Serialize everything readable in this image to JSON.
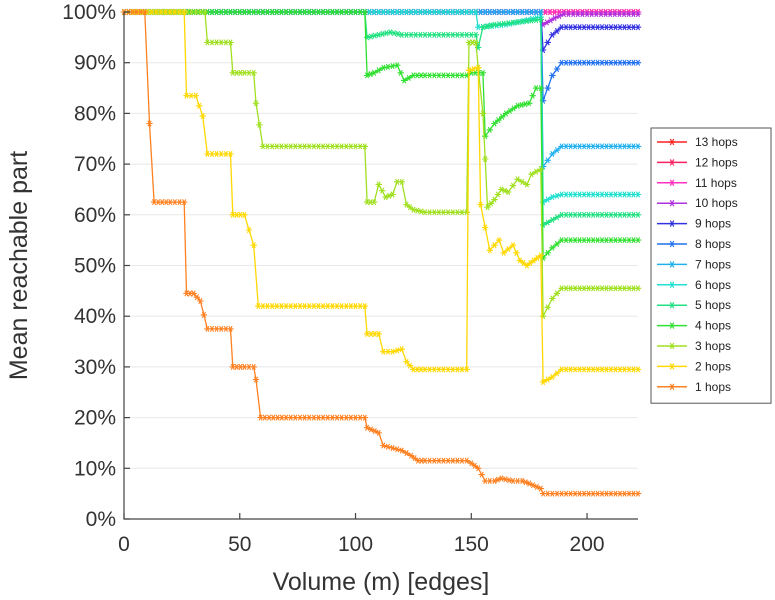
{
  "chart_data": {
    "type": "line",
    "title": "",
    "xlabel": "Volume (m) [edges]",
    "ylabel": "Mean reachable part",
    "xlim": [
      0,
      222
    ],
    "ylim": [
      0,
      100
    ],
    "xticks": [
      0,
      50,
      100,
      150,
      200
    ],
    "yticks": [
      0,
      10,
      20,
      30,
      40,
      50,
      60,
      70,
      80,
      90,
      100
    ],
    "xtick_labels": [
      "0",
      "50",
      "100",
      "150",
      "200"
    ],
    "ytick_labels": [
      "0%",
      "10%",
      "20%",
      "30%",
      "40%",
      "50%",
      "60%",
      "70%",
      "80%",
      "90%",
      "100%"
    ],
    "legend_position": "right",
    "grid": true,
    "marker": "star",
    "series": [
      {
        "name": "13 hops",
        "color": "#ff2020",
        "points": [
          [
            0,
            100
          ],
          [
            222,
            100
          ]
        ]
      },
      {
        "name": "12 hops",
        "color": "#ff2060",
        "points": [
          [
            0,
            100
          ],
          [
            222,
            100
          ]
        ]
      },
      {
        "name": "11 hops",
        "color": "#ff30c0",
        "points": [
          [
            0,
            100
          ],
          [
            222,
            100
          ]
        ]
      },
      {
        "name": "10 hops",
        "color": "#b030e0",
        "points": [
          [
            0,
            100
          ],
          [
            180,
            100
          ],
          [
            181,
            97.5
          ],
          [
            186,
            98.8
          ],
          [
            190,
            99.6
          ],
          [
            222,
            99.6
          ]
        ]
      },
      {
        "name": "9 hops",
        "color": "#3030e0",
        "points": [
          [
            0,
            100
          ],
          [
            180,
            100
          ],
          [
            181,
            92.5
          ],
          [
            185,
            95.5
          ],
          [
            189,
            97
          ],
          [
            222,
            97
          ]
        ]
      },
      {
        "name": "8 hops",
        "color": "#2070f0",
        "points": [
          [
            0,
            100
          ],
          [
            180,
            100
          ],
          [
            181,
            82.5
          ],
          [
            185,
            87.5
          ],
          [
            189,
            90
          ],
          [
            222,
            90
          ]
        ]
      },
      {
        "name": "7 hops",
        "color": "#20b0f0",
        "points": [
          [
            0,
            100
          ],
          [
            180,
            100
          ],
          [
            181,
            69.5
          ],
          [
            185,
            72
          ],
          [
            189,
            73.5
          ],
          [
            222,
            73.5
          ]
        ]
      },
      {
        "name": "6 hops",
        "color": "#20e0d0",
        "points": [
          [
            0,
            100
          ],
          [
            152,
            100
          ],
          [
            153,
            97
          ],
          [
            165,
            97.5
          ],
          [
            180,
            99
          ],
          [
            181,
            62.5
          ],
          [
            185,
            63.5
          ],
          [
            189,
            64
          ],
          [
            222,
            64
          ]
        ]
      },
      {
        "name": "5 hops",
        "color": "#20e080",
        "points": [
          [
            0,
            100
          ],
          [
            104,
            100
          ],
          [
            105,
            95
          ],
          [
            110,
            95.5
          ],
          [
            115,
            96
          ],
          [
            120,
            95.5
          ],
          [
            130,
            95.5
          ],
          [
            150,
            95.5
          ],
          [
            152,
            95.5
          ],
          [
            153,
            93
          ],
          [
            155,
            97
          ],
          [
            160,
            97.5
          ],
          [
            170,
            98
          ],
          [
            180,
            98.5
          ],
          [
            181,
            58
          ],
          [
            185,
            59
          ],
          [
            189,
            60
          ],
          [
            222,
            60
          ]
        ]
      },
      {
        "name": "4 hops",
        "color": "#30e030",
        "points": [
          [
            0,
            100
          ],
          [
            104,
            100
          ],
          [
            105,
            87.5
          ],
          [
            108,
            88
          ],
          [
            112,
            89
          ],
          [
            118,
            89.5
          ],
          [
            121,
            86.5
          ],
          [
            125,
            87.5
          ],
          [
            130,
            87.5
          ],
          [
            140,
            87.5
          ],
          [
            148,
            87.5
          ],
          [
            150,
            88
          ],
          [
            155,
            88
          ],
          [
            156,
            75.5
          ],
          [
            160,
            78
          ],
          [
            165,
            80
          ],
          [
            170,
            81.5
          ],
          [
            175,
            82
          ],
          [
            178,
            85
          ],
          [
            180,
            85
          ],
          [
            181,
            51.5
          ],
          [
            185,
            53.5
          ],
          [
            189,
            55
          ],
          [
            222,
            55
          ]
        ]
      },
      {
        "name": "3 hops",
        "color": "#a0e020",
        "points": [
          [
            0,
            100
          ],
          [
            35,
            100
          ],
          [
            36,
            94
          ],
          [
            40,
            94
          ],
          [
            46,
            94
          ],
          [
            47,
            88
          ],
          [
            52,
            88
          ],
          [
            56,
            88
          ],
          [
            57,
            82
          ],
          [
            60,
            73.5
          ],
          [
            70,
            73.5
          ],
          [
            90,
            73.5
          ],
          [
            104,
            73.5
          ],
          [
            105,
            62.5
          ],
          [
            108,
            62.5
          ],
          [
            110,
            66
          ],
          [
            113,
            63.5
          ],
          [
            116,
            64
          ],
          [
            118,
            66.5
          ],
          [
            120,
            66.5
          ],
          [
            122,
            62
          ],
          [
            125,
            61
          ],
          [
            130,
            60.5
          ],
          [
            140,
            60.5
          ],
          [
            148,
            60.5
          ],
          [
            149,
            94
          ],
          [
            152,
            94
          ],
          [
            153,
            89
          ],
          [
            155,
            80
          ],
          [
            156,
            71
          ],
          [
            157,
            61.5
          ],
          [
            160,
            63
          ],
          [
            163,
            65
          ],
          [
            166,
            64.5
          ],
          [
            170,
            67
          ],
          [
            174,
            66
          ],
          [
            176,
            68
          ],
          [
            180,
            69
          ],
          [
            181,
            40
          ],
          [
            185,
            43.5
          ],
          [
            189,
            45.5
          ],
          [
            222,
            45.5
          ]
        ]
      },
      {
        "name": "2 hops",
        "color": "#ffd800",
        "points": [
          [
            0,
            100
          ],
          [
            26,
            100
          ],
          [
            27,
            83.5
          ],
          [
            31,
            83.5
          ],
          [
            34,
            79.5
          ],
          [
            36,
            72
          ],
          [
            40,
            72
          ],
          [
            46,
            72
          ],
          [
            47,
            60
          ],
          [
            52,
            60
          ],
          [
            56,
            54
          ],
          [
            58,
            42
          ],
          [
            70,
            42
          ],
          [
            90,
            42
          ],
          [
            104,
            42
          ],
          [
            105,
            36.5
          ],
          [
            110,
            36.5
          ],
          [
            112,
            33
          ],
          [
            116,
            33
          ],
          [
            120,
            33.5
          ],
          [
            122,
            31
          ],
          [
            125,
            29.5
          ],
          [
            130,
            29.5
          ],
          [
            140,
            29.5
          ],
          [
            148,
            29.5
          ],
          [
            149,
            88.5
          ],
          [
            153,
            89
          ],
          [
            154,
            62
          ],
          [
            158,
            53
          ],
          [
            162,
            55
          ],
          [
            164,
            52.5
          ],
          [
            168,
            54
          ],
          [
            171,
            51
          ],
          [
            174,
            50
          ],
          [
            177,
            51
          ],
          [
            180,
            52
          ],
          [
            181,
            27
          ],
          [
            185,
            28
          ],
          [
            189,
            29.5
          ],
          [
            222,
            29.5
          ]
        ]
      },
      {
        "name": "1 hops",
        "color": "#ff8020",
        "points": [
          [
            0,
            100
          ],
          [
            9,
            100
          ],
          [
            11,
            78
          ],
          [
            13,
            62.5
          ],
          [
            20,
            62.5
          ],
          [
            26,
            62.5
          ],
          [
            27,
            44.5
          ],
          [
            30,
            44.5
          ],
          [
            33,
            43
          ],
          [
            36,
            37.5
          ],
          [
            40,
            37.5
          ],
          [
            46,
            37.5
          ],
          [
            47,
            30
          ],
          [
            52,
            30
          ],
          [
            56,
            30
          ],
          [
            57,
            27.5
          ],
          [
            59,
            20
          ],
          [
            70,
            20
          ],
          [
            90,
            20
          ],
          [
            104,
            20
          ],
          [
            105,
            18
          ],
          [
            110,
            17
          ],
          [
            112,
            14.5
          ],
          [
            116,
            14
          ],
          [
            120,
            13.5
          ],
          [
            124,
            12.5
          ],
          [
            127,
            11.5
          ],
          [
            130,
            11.5
          ],
          [
            140,
            11.5
          ],
          [
            148,
            11.5
          ],
          [
            150,
            11
          ],
          [
            153,
            10
          ],
          [
            156,
            7.5
          ],
          [
            160,
            7.5
          ],
          [
            163,
            8
          ],
          [
            168,
            7.5
          ],
          [
            172,
            7.5
          ],
          [
            175,
            7
          ],
          [
            180,
            6
          ],
          [
            181,
            5
          ],
          [
            185,
            5
          ],
          [
            189,
            5
          ],
          [
            222,
            5
          ]
        ]
      }
    ]
  }
}
